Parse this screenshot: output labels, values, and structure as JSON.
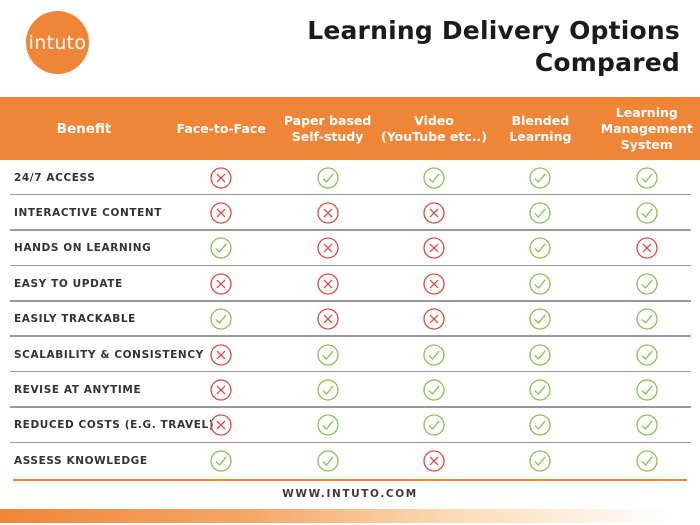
{
  "logo": {
    "text": "intuto"
  },
  "header": {
    "title_line1": "Learning Delivery Options",
    "title_line2": "Compared"
  },
  "table": {
    "benefit_header": "Benefit",
    "columns": [
      "Face-to-Face",
      "Paper based\nSelf-study",
      "Video\n(YouTube etc..)",
      "Blended\nLearning",
      "Learning\nManagement\nSystem"
    ],
    "rows": [
      {
        "label": "24/7 ACCESS",
        "cells": [
          "no",
          "yes",
          "yes",
          "yes",
          "yes"
        ]
      },
      {
        "label": "INTERACTIVE CONTENT",
        "cells": [
          "no",
          "no",
          "no",
          "yes",
          "yes"
        ]
      },
      {
        "label": "HANDS ON LEARNING",
        "cells": [
          "yes",
          "no",
          "no",
          "yes",
          "no"
        ]
      },
      {
        "label": "EASY TO UPDATE",
        "cells": [
          "no",
          "no",
          "no",
          "yes",
          "yes"
        ]
      },
      {
        "label": "EASILY TRACKABLE",
        "cells": [
          "yes",
          "no",
          "no",
          "yes",
          "yes"
        ]
      },
      {
        "label": "SCALABILITY & CONSISTENCY",
        "cells": [
          "no",
          "yes",
          "yes",
          "yes",
          "yes"
        ]
      },
      {
        "label": "REVISE AT ANYTIME",
        "cells": [
          "no",
          "yes",
          "yes",
          "yes",
          "yes"
        ]
      },
      {
        "label": "REDUCED COSTS (E.G. TRAVEL)",
        "cells": [
          "no",
          "yes",
          "yes",
          "yes",
          "yes"
        ]
      },
      {
        "label": "ASSESS KNOWLEDGE",
        "cells": [
          "yes",
          "yes",
          "no",
          "yes",
          "yes"
        ]
      }
    ]
  },
  "footer": {
    "url": "WWW.INTUTO.COM"
  },
  "icons": {
    "yes": "check-icon",
    "no": "cross-icon"
  },
  "colors": {
    "orange": "#EF8637",
    "green": "#85C24F",
    "red": "#DB4A3F",
    "separator": "#9A9A9A",
    "gradient_start": "#EE8130",
    "gradient_end": "#FFFFFF"
  }
}
